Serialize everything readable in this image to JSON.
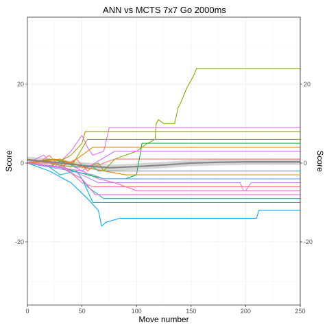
{
  "chart_data": {
    "type": "line",
    "title": "ANN vs MCTS 7x7 Go 2000ms",
    "xlabel": "Move number",
    "ylabel": "Score",
    "y2label": "Score",
    "xlim": [
      0,
      250
    ],
    "ylim": [
      -36,
      37
    ],
    "x_ticks": [
      0,
      50,
      100,
      150,
      200,
      250
    ],
    "y_ticks": [
      -20,
      0,
      20
    ],
    "grid": true,
    "legend": "none",
    "smooth": {
      "color": "#808080",
      "x": [
        0,
        25,
        50,
        75,
        100,
        125,
        150,
        175,
        200,
        225,
        250
      ],
      "y": [
        0.8,
        0.2,
        -0.6,
        -1.2,
        -0.9,
        -0.5,
        0.0,
        0.2,
        0.3,
        0.3,
        0.3
      ],
      "band": 0.8
    },
    "series": [
      {
        "color": "#7CAE00",
        "points": [
          [
            0,
            0
          ],
          [
            20,
            1
          ],
          [
            40,
            0
          ],
          [
            55,
            -1
          ],
          [
            65,
            0
          ],
          [
            70,
            -2
          ],
          [
            80,
            1
          ],
          [
            100,
            3
          ],
          [
            110,
            5
          ],
          [
            117,
            6
          ],
          [
            118,
            10
          ],
          [
            120,
            11
          ],
          [
            125,
            10
          ],
          [
            135,
            10
          ],
          [
            138,
            14
          ],
          [
            140,
            15
          ],
          [
            143,
            17
          ],
          [
            146,
            19
          ],
          [
            148,
            20
          ],
          [
            150,
            21
          ],
          [
            152,
            22
          ],
          [
            155,
            24
          ],
          [
            250,
            24
          ]
        ]
      },
      {
        "color": "#F8766D",
        "points": [
          [
            0,
            1
          ],
          [
            10,
            0
          ],
          [
            20,
            2
          ],
          [
            30,
            -1
          ],
          [
            45,
            1
          ],
          [
            55,
            -2
          ],
          [
            60,
            -1
          ],
          [
            70,
            0
          ],
          [
            80,
            1
          ],
          [
            100,
            1
          ],
          [
            250,
            1
          ]
        ]
      },
      {
        "color": "#E76BF3",
        "points": [
          [
            0,
            0
          ],
          [
            15,
            2
          ],
          [
            25,
            -1
          ],
          [
            40,
            3
          ],
          [
            50,
            7
          ],
          [
            55,
            4
          ],
          [
            60,
            2
          ],
          [
            70,
            3
          ],
          [
            75,
            9
          ],
          [
            250,
            9
          ]
        ]
      },
      {
        "color": "#A3A500",
        "points": [
          [
            0,
            0
          ],
          [
            20,
            -1
          ],
          [
            40,
            2
          ],
          [
            50,
            5
          ],
          [
            53,
            8
          ],
          [
            250,
            8
          ]
        ]
      },
      {
        "color": "#00BFC4",
        "points": [
          [
            0,
            0
          ],
          [
            20,
            -1
          ],
          [
            30,
            -3
          ],
          [
            45,
            -2
          ],
          [
            55,
            -6
          ],
          [
            60,
            -7
          ],
          [
            65,
            -8
          ],
          [
            70,
            -9
          ],
          [
            75,
            -9
          ],
          [
            250,
            -9
          ]
        ]
      },
      {
        "color": "#00A9FF",
        "points": [
          [
            0,
            0
          ],
          [
            20,
            -2
          ],
          [
            40,
            -5
          ],
          [
            55,
            -9
          ],
          [
            65,
            -12
          ],
          [
            68,
            -16
          ],
          [
            72,
            -15
          ],
          [
            85,
            -14
          ],
          [
            210,
            -14
          ],
          [
            212,
            -12
          ],
          [
            250,
            -12
          ]
        ]
      },
      {
        "color": "#C77CFF",
        "points": [
          [
            0,
            1
          ],
          [
            25,
            0
          ],
          [
            50,
            -3
          ],
          [
            65,
            -5
          ],
          [
            80,
            -5
          ],
          [
            195,
            -5
          ],
          [
            198,
            -7
          ],
          [
            200,
            -7
          ],
          [
            205,
            -5
          ],
          [
            250,
            -5
          ]
        ]
      },
      {
        "color": "#FF61C3",
        "points": [
          [
            0,
            0
          ],
          [
            30,
            1
          ],
          [
            50,
            -2
          ],
          [
            65,
            -4
          ],
          [
            80,
            -5
          ],
          [
            100,
            -7
          ],
          [
            240,
            -7
          ],
          [
            250,
            -7
          ]
        ]
      },
      {
        "color": "#00BA38",
        "points": [
          [
            0,
            0
          ],
          [
            30,
            -1
          ],
          [
            55,
            -3
          ],
          [
            70,
            -4
          ],
          [
            90,
            -4
          ],
          [
            100,
            -3
          ],
          [
            105,
            5
          ],
          [
            250,
            5
          ]
        ]
      },
      {
        "color": "#619CFF",
        "points": [
          [
            0,
            0
          ],
          [
            20,
            -1
          ],
          [
            40,
            -2
          ],
          [
            60,
            -3
          ],
          [
            70,
            -4
          ],
          [
            250,
            -4
          ]
        ]
      },
      {
        "color": "#00C19A",
        "points": [
          [
            0,
            0
          ],
          [
            25,
            1
          ],
          [
            45,
            -1
          ],
          [
            60,
            -1
          ],
          [
            65,
            -2
          ],
          [
            250,
            -2
          ]
        ]
      },
      {
        "color": "#DB72FB",
        "points": [
          [
            0,
            0
          ],
          [
            25,
            -1
          ],
          [
            50,
            -2
          ],
          [
            80,
            3
          ],
          [
            250,
            3
          ]
        ]
      },
      {
        "color": "#D39200",
        "points": [
          [
            0,
            0
          ],
          [
            30,
            1
          ],
          [
            50,
            -1
          ],
          [
            70,
            -2
          ],
          [
            90,
            -3
          ],
          [
            250,
            -3
          ]
        ]
      },
      {
        "color": "#93AA00",
        "points": [
          [
            0,
            1
          ],
          [
            20,
            0
          ],
          [
            40,
            -1
          ],
          [
            55,
            6
          ],
          [
            250,
            6
          ]
        ]
      },
      {
        "color": "#FF6C91",
        "points": [
          [
            0,
            0
          ],
          [
            30,
            0
          ],
          [
            50,
            -5
          ],
          [
            60,
            -6
          ],
          [
            250,
            -6
          ]
        ]
      },
      {
        "color": "#00B9E3",
        "points": [
          [
            0,
            0
          ],
          [
            30,
            -1
          ],
          [
            50,
            -4
          ],
          [
            60,
            -10
          ],
          [
            250,
            -10
          ]
        ]
      },
      {
        "color": "#E58700",
        "points": [
          [
            0,
            0
          ],
          [
            25,
            1
          ],
          [
            40,
            0
          ],
          [
            60,
            4
          ],
          [
            250,
            4
          ]
        ]
      },
      {
        "color": "#FD61D1",
        "points": [
          [
            0,
            0
          ],
          [
            30,
            -1
          ],
          [
            50,
            -4
          ],
          [
            62,
            -8
          ],
          [
            250,
            -8
          ]
        ]
      }
    ]
  }
}
